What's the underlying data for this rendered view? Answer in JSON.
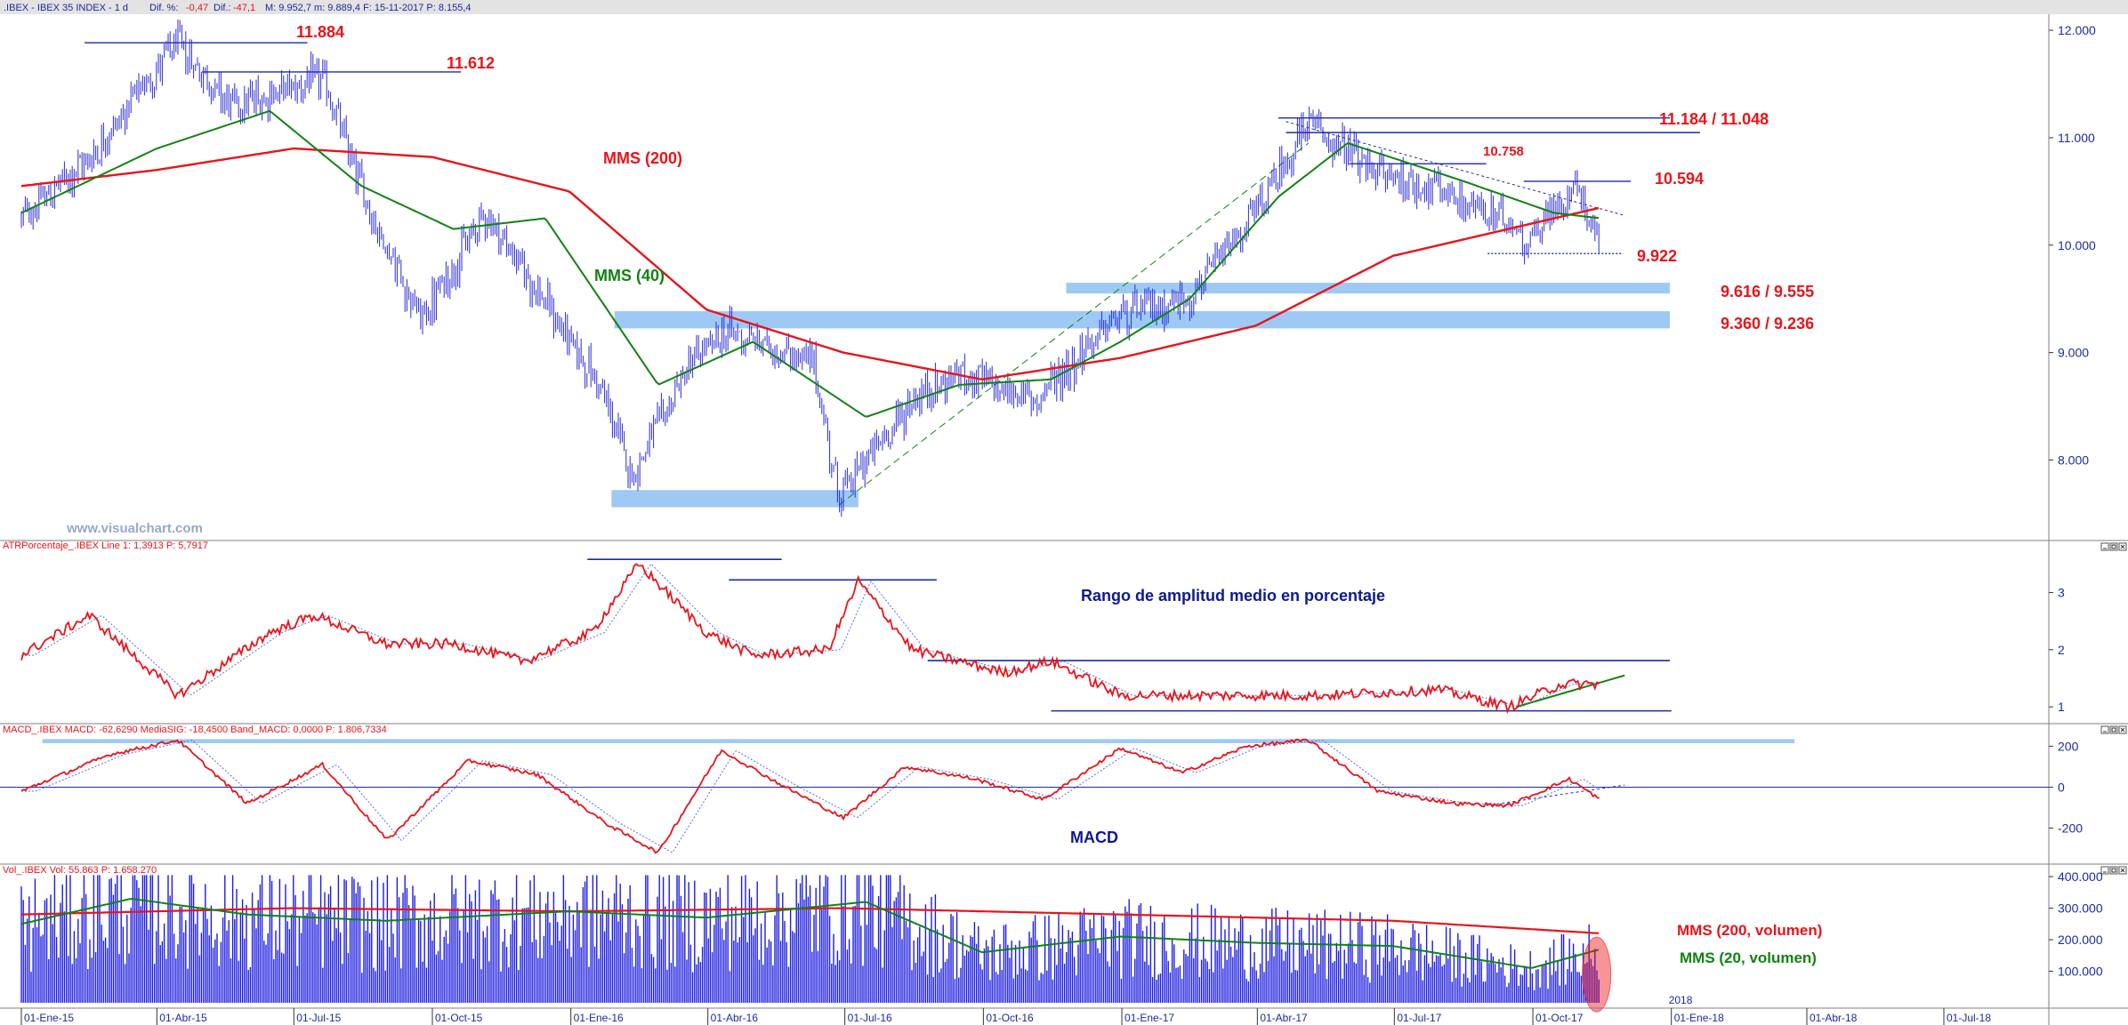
{
  "header": {
    "main": ".IBEX - IBEX 35 INDEX - 1 d",
    "dif_pct_label": "Dif. %:",
    "dif_pct_value": "-0,47",
    "dif_label": "Dif.:",
    "dif_value": "-47,1",
    "max_min_close": "M: 9.952,7  m: 9.889,4  F: 15-11-2017  P: 8.155,4"
  },
  "watermark": "www.visualchart.com",
  "colors": {
    "price": "#2b2bd6",
    "mms200": "#e8141b",
    "mms40": "#128212",
    "zone": "#9ec9f5",
    "label_red": "#e8141b",
    "label_navy": "#0d1a8c",
    "line_navy": "#1d2aa0",
    "panel_border": "#7f7f7f"
  },
  "chart_data": [
    {
      "type": "line",
      "panel": "price",
      "ylim": [
        7300,
        12100
      ],
      "y_ticks": [
        "12.000",
        "11.000",
        "10.000",
        "9.000",
        "8.000"
      ],
      "y_tick_values": [
        12000,
        11000,
        10000,
        9000,
        8000
      ],
      "x_ticks": [
        "01-Ene-15",
        "01-Abr-15",
        "01-Jul-15",
        "01-Oct-15",
        "01-Ene-16",
        "01-Abr-16",
        "01-Jul-16",
        "01-Oct-16",
        "01-Ene-17",
        "01-Abr-17",
        "01-Jul-17",
        "01-Oct-17",
        "01-Ene-18",
        "01-Abr-18",
        "01-Jul-18"
      ],
      "series": [
        {
          "name": "IBEX",
          "x": [
            "2015-01-01",
            "2015-02-15",
            "2015-04-14",
            "2015-05-20",
            "2015-07-20",
            "2015-08-24",
            "2015-09-24",
            "2015-11-05",
            "2016-01-20",
            "2016-02-11",
            "2016-03-20",
            "2016-04-15",
            "2016-06-10",
            "2016-06-27",
            "2016-08-15",
            "2016-09-15",
            "2016-11-04",
            "2016-12-31",
            "2017-02-15",
            "2017-03-31",
            "2017-05-05",
            "2017-06-15",
            "2017-07-31",
            "2017-09-15",
            "2017-09-29",
            "2017-10-31",
            "2017-11-15"
          ],
          "values": [
            10250,
            10800,
            11880,
            11300,
            11550,
            10200,
            9300,
            10300,
            8700,
            7850,
            8900,
            9200,
            8900,
            7660,
            8550,
            8800,
            8550,
            9350,
            9500,
            10300,
            11130,
            10700,
            10500,
            10200,
            10050,
            10590,
            9920
          ]
        },
        {
          "name": "MMS (40)",
          "x": [
            "2015-01-01",
            "2015-04-01",
            "2015-06-15",
            "2015-08-15",
            "2015-10-15",
            "2015-12-15",
            "2016-02-28",
            "2016-05-01",
            "2016-07-15",
            "2016-09-15",
            "2016-11-15",
            "2016-12-31",
            "2017-02-15",
            "2017-04-15",
            "2017-05-31",
            "2017-08-15",
            "2017-10-15",
            "2017-11-15"
          ],
          "values": [
            10300,
            10900,
            11250,
            10550,
            10150,
            10250,
            8700,
            9100,
            8400,
            8700,
            8750,
            9100,
            9500,
            10450,
            10950,
            10600,
            10300,
            10250
          ]
        },
        {
          "name": "MMS (200)",
          "x": [
            "2015-01-01",
            "2015-04-01",
            "2015-07-01",
            "2015-10-01",
            "2015-12-31",
            "2016-03-31",
            "2016-06-30",
            "2016-09-30",
            "2016-12-31",
            "2017-03-31",
            "2017-06-30",
            "2017-09-30",
            "2017-11-15"
          ],
          "values": [
            10550,
            10700,
            10900,
            10820,
            10500,
            9400,
            9000,
            8750,
            8950,
            9250,
            9900,
            10200,
            10350
          ]
        }
      ],
      "annotations": [
        {
          "text": "11.884",
          "value": 11884
        },
        {
          "text": "11.612",
          "value": 11612
        },
        {
          "text": "11.184 / 11.048",
          "value": 11184
        },
        {
          "text": "10.758",
          "value": 10758
        },
        {
          "text": "10.594",
          "value": 10594
        },
        {
          "text": "9.922",
          "value": 9922
        },
        {
          "text": "9.616 / 9.555",
          "value": 9616
        },
        {
          "text": "9.360 / 9.236",
          "value": 9360
        },
        {
          "text": "MMS (200)",
          "value": null
        },
        {
          "text": "MMS (40)",
          "value": null
        }
      ]
    },
    {
      "type": "line",
      "panel": "atr",
      "title": "ATRPorcentaje_.IBEX  Line 1: 1,3913  P: 5,7917",
      "annotation": "Rango de amplitud medio en porcentaje",
      "ylim": [
        0.8,
        3.8
      ],
      "y_ticks": [
        "3",
        "2",
        "1"
      ],
      "y_tick_values": [
        3,
        2,
        1
      ],
      "series": [
        {
          "name": "ATR %",
          "x": [
            "2015-01-01",
            "2015-02-15",
            "2015-04-15",
            "2015-06-15",
            "2015-07-15",
            "2015-08-31",
            "2015-10-15",
            "2015-12-01",
            "2016-01-15",
            "2016-02-15",
            "2016-03-31",
            "2016-05-01",
            "2016-06-20",
            "2016-07-10",
            "2016-08-15",
            "2016-10-15",
            "2016-11-15",
            "2016-12-31",
            "2017-02-28",
            "2017-05-15",
            "2017-07-31",
            "2017-09-15",
            "2017-10-20",
            "2017-11-15"
          ],
          "values": [
            1.9,
            2.6,
            1.2,
            2.3,
            2.6,
            2.1,
            2.1,
            1.8,
            2.3,
            3.5,
            2.3,
            1.9,
            2.0,
            3.2,
            2.0,
            1.6,
            1.8,
            1.2,
            1.2,
            1.2,
            1.3,
            1.0,
            1.4,
            1.4
          ]
        }
      ]
    },
    {
      "type": "line",
      "panel": "macd",
      "title": "MACD_.IBEX  MACD: -62,6290  MediaSIG: -18,4500  Band_MACD: 0,0000  P: 1.806,7334",
      "annotation": "MACD",
      "ylim": [
        -350,
        280
      ],
      "y_ticks": [
        "200",
        "0",
        "-200"
      ],
      "y_tick_values": [
        200,
        0,
        -200
      ],
      "series": [
        {
          "name": "MACD",
          "x": [
            "2015-01-01",
            "2015-03-01",
            "2015-04-15",
            "2015-05-31",
            "2015-07-20",
            "2015-09-01",
            "2015-10-25",
            "2015-12-10",
            "2016-01-25",
            "2016-02-28",
            "2016-04-10",
            "2016-05-20",
            "2016-06-30",
            "2016-08-10",
            "2016-09-25",
            "2016-11-10",
            "2016-12-31",
            "2017-02-10",
            "2017-03-25",
            "2017-05-05",
            "2017-06-20",
            "2017-08-10",
            "2017-09-15",
            "2017-10-25",
            "2017-11-15"
          ],
          "values": [
            -20,
            160,
            230,
            -80,
            110,
            -260,
            130,
            60,
            -180,
            -320,
            180,
            10,
            -150,
            100,
            40,
            -60,
            190,
            70,
            200,
            230,
            -20,
            -80,
            -90,
            40,
            -62
          ]
        }
      ]
    },
    {
      "type": "bar",
      "panel": "volume",
      "title": "Vol_.IBEX  Vol: 55.863  P: 1.658.270",
      "ylim": [
        0,
        420000
      ],
      "y_ticks": [
        "400.000",
        "300.000",
        "200.000",
        "100.000"
      ],
      "y_tick_values": [
        400000,
        300000,
        200000,
        100000
      ],
      "series": [
        {
          "name": "MMS (200, volumen)",
          "x": [
            "2015-01-01",
            "2015-06-30",
            "2015-12-31",
            "2016-06-30",
            "2016-12-31",
            "2017-06-30",
            "2017-11-15"
          ],
          "values": [
            280000,
            300000,
            290000,
            300000,
            280000,
            260000,
            220000
          ]
        },
        {
          "name": "MMS (20, volumen)",
          "x": [
            "2015-01-01",
            "2015-03-15",
            "2015-05-31",
            "2015-08-31",
            "2015-12-31",
            "2016-03-31",
            "2016-07-15",
            "2016-09-30",
            "2016-12-31",
            "2017-03-31",
            "2017-06-30",
            "2017-09-30",
            "2017-11-15"
          ],
          "values": [
            250000,
            330000,
            280000,
            260000,
            290000,
            270000,
            320000,
            160000,
            210000,
            190000,
            180000,
            110000,
            170000
          ]
        }
      ],
      "annotations": [
        {
          "text": "MMS (200, volumen)"
        },
        {
          "text": "MMS (20, volumen)"
        }
      ]
    }
  ]
}
